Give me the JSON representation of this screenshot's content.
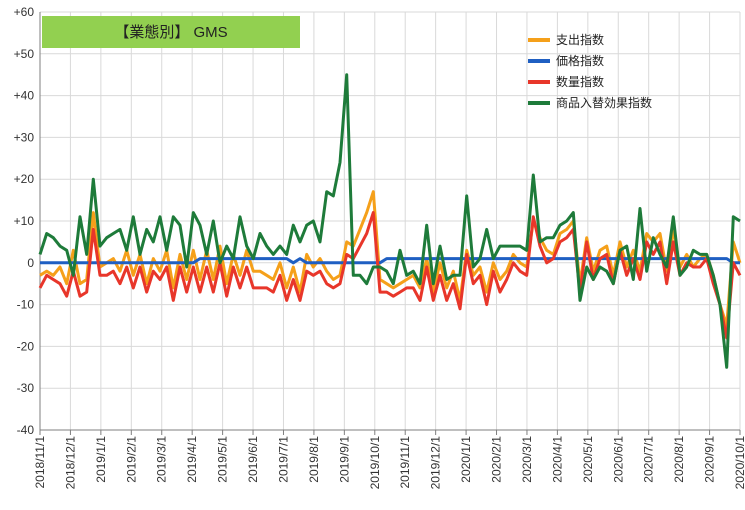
{
  "chart_data": {
    "type": "line",
    "title": "【業態別】 GMS",
    "title_background": "#92d050",
    "ylim": [
      -40,
      60
    ],
    "y_ticks": [
      "+60",
      "+50",
      "+40",
      "+30",
      "+20",
      "+10",
      "0",
      "-10",
      "-20",
      "-30",
      "-40"
    ],
    "x_tick_labels": [
      "2018/11/1",
      "2018/12/1",
      "2019/1/1",
      "2019/2/1",
      "2019/3/1",
      "2019/4/1",
      "2019/5/1",
      "2019/6/1",
      "2019/7/1",
      "2019/8/1",
      "2019/9/1",
      "2019/10/1",
      "2019/11/1",
      "2019/12/1",
      "2020/1/1",
      "2020/2/1",
      "2020/3/1",
      "2020/4/1",
      "2020/5/1",
      "2020/6/1",
      "2020/7/1",
      "2020/8/1",
      "2020/9/1",
      "2020/10/1"
    ],
    "grid": true,
    "legend_position": "top-right",
    "series": [
      {
        "name": "支出指数",
        "color": "#f5a01a",
        "values": [
          -3,
          -2,
          -3,
          -1,
          -5,
          3,
          -5,
          -4,
          12,
          -1,
          0,
          1,
          -2,
          3,
          -3,
          2,
          -5,
          1,
          -2,
          3,
          -6,
          2,
          -4,
          3,
          -4,
          3,
          -4,
          4,
          -5,
          2,
          -3,
          3,
          -2,
          -2,
          -3,
          -4,
          0,
          -6,
          -1,
          -7,
          2,
          -1,
          1,
          -2,
          -4,
          -3,
          5,
          4,
          8,
          12,
          17,
          -4,
          -5,
          -6,
          -5,
          -4,
          -3,
          -6,
          1,
          -7,
          0,
          -6,
          -2,
          -9,
          3,
          -3,
          -1,
          -7,
          0,
          -4,
          -2,
          2,
          0,
          -1,
          10,
          6,
          3,
          2,
          7,
          8,
          10,
          -5,
          6,
          -2,
          3,
          4,
          -3,
          5,
          -1,
          3,
          -2,
          7,
          5,
          7,
          -2,
          8,
          -1,
          2,
          -1,
          1,
          2,
          -3,
          -10,
          -15,
          5,
          0
        ]
      },
      {
        "name": "価格指数",
        "color": "#1f5fc2",
        "values": [
          0,
          0,
          0,
          0,
          0,
          0,
          0,
          0,
          0,
          0,
          0,
          0,
          0,
          0,
          0,
          0,
          0,
          0,
          0,
          0,
          0,
          0,
          0,
          0,
          1,
          1,
          1,
          1,
          1,
          1,
          1,
          1,
          1,
          1,
          1,
          1,
          1,
          1,
          0,
          1,
          0,
          0,
          0,
          0,
          0,
          0,
          0,
          0,
          0,
          0,
          0,
          0,
          1,
          1,
          1,
          1,
          1,
          1,
          1,
          1,
          1,
          1,
          1,
          1,
          1,
          1,
          1,
          1,
          1,
          1,
          1,
          1,
          1,
          1,
          1,
          1,
          1,
          1,
          1,
          1,
          1,
          1,
          1,
          1,
          1,
          1,
          1,
          1,
          1,
          1,
          1,
          1,
          1,
          1,
          1,
          1,
          1,
          1,
          1,
          1,
          1,
          1,
          1,
          1,
          0,
          0
        ]
      },
      {
        "name": "数量指数",
        "color": "#e8362a",
        "values": [
          -6,
          -3,
          -4,
          -5,
          -8,
          -2,
          -8,
          -7,
          8,
          -3,
          -3,
          -2,
          -5,
          -1,
          -6,
          -1,
          -7,
          -2,
          -4,
          -1,
          -9,
          -1,
          -7,
          -1,
          -7,
          -1,
          -7,
          0,
          -8,
          -1,
          -6,
          -1,
          -6,
          -6,
          -6,
          -7,
          -3,
          -9,
          -4,
          -9,
          -2,
          -3,
          -2,
          -5,
          -6,
          -5,
          2,
          1,
          4,
          7,
          12,
          -7,
          -7,
          -8,
          -7,
          -6,
          -6,
          -9,
          -1,
          -9,
          -3,
          -9,
          -5,
          -11,
          2,
          -5,
          -3,
          -10,
          -2,
          -7,
          -4,
          0,
          -2,
          -3,
          11,
          4,
          0,
          1,
          5,
          6,
          8,
          -7,
          5,
          -4,
          1,
          2,
          -5,
          3,
          -3,
          1,
          -4,
          5,
          2,
          5,
          -5,
          5,
          -3,
          0,
          -1,
          -1,
          1,
          -5,
          -10,
          -18,
          0,
          -3
        ]
      },
      {
        "name": "商品入替効果指数",
        "color": "#1e7b3a",
        "values": [
          2,
          7,
          6,
          4,
          3,
          -3,
          11,
          2,
          20,
          4,
          6,
          7,
          8,
          3,
          11,
          2,
          8,
          5,
          11,
          3,
          11,
          9,
          -1,
          12,
          9,
          2,
          10,
          0,
          4,
          1,
          11,
          4,
          1,
          7,
          4,
          2,
          4,
          2,
          9,
          5,
          9,
          10,
          5,
          17,
          16,
          24,
          45,
          -3,
          -3,
          -5,
          -1,
          -1,
          -2,
          -5,
          3,
          -3,
          -2,
          -5,
          9,
          -5,
          4,
          -4,
          -3,
          -3,
          16,
          -1,
          1,
          8,
          1,
          4,
          4,
          4,
          4,
          3,
          21,
          5,
          6,
          6,
          9,
          10,
          12,
          -9,
          -1,
          -4,
          -1,
          -2,
          -5,
          3,
          4,
          -4,
          13,
          -2,
          6,
          2,
          -1,
          11,
          -3,
          -1,
          3,
          2,
          2,
          -3,
          -10,
          -25,
          11,
          10
        ]
      }
    ]
  }
}
